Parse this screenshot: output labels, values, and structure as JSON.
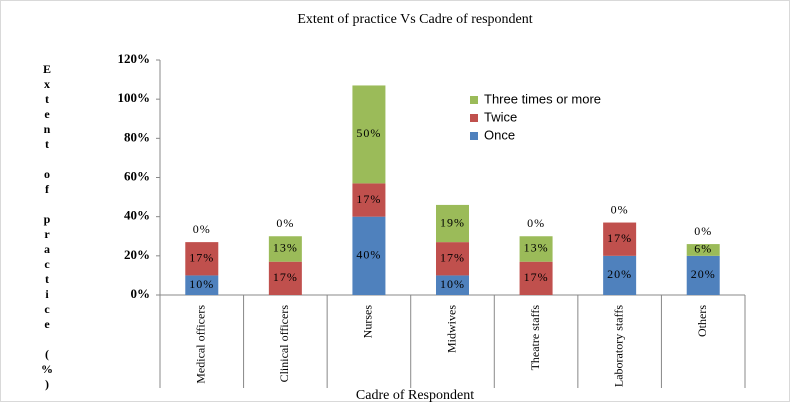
{
  "chart_data": {
    "type": "stacked_bar",
    "title": "Extent of practice Vs Cadre of respondent",
    "x_label": "Cadre of Respondent",
    "y_label": "Extent of practice (%)",
    "categories": [
      "Medical officers",
      "Clinical officers",
      "Nurses",
      "Midwives",
      "Theatre staffs",
      "Laboratory staffs",
      "Others"
    ],
    "series": [
      {
        "name": "Once",
        "color": "#4f81bd",
        "values": [
          10,
          0,
          40,
          10,
          0,
          20,
          20
        ],
        "value_labels": [
          "10%",
          "0%",
          "40%",
          "10%",
          "0%",
          "20%",
          "20%"
        ]
      },
      {
        "name": "Twice",
        "color": "#c0504d",
        "values": [
          17,
          17,
          17,
          17,
          17,
          17,
          0
        ],
        "value_labels": [
          "17%",
          "17%",
          "17%",
          "17%",
          "17%",
          "17%",
          "0%"
        ]
      },
      {
        "name": "Three times or more",
        "color": "#9bbb59",
        "values": [
          0,
          13,
          50,
          19,
          13,
          0,
          6
        ],
        "value_labels": [
          "0%",
          "13%",
          "50%",
          "19%",
          "13%",
          "0%",
          "6%"
        ]
      }
    ],
    "ylim": [
      0,
      120
    ],
    "yticks": [
      {
        "value": 0,
        "label": "0%"
      },
      {
        "value": 20,
        "label": "20%"
      },
      {
        "value": 40,
        "label": "40%"
      },
      {
        "value": 60,
        "label": "60%"
      },
      {
        "value": 80,
        "label": "80%"
      },
      {
        "value": 100,
        "label": "100%"
      },
      {
        "value": 120,
        "label": "120%"
      }
    ],
    "grid": false,
    "legend": "upper right"
  }
}
